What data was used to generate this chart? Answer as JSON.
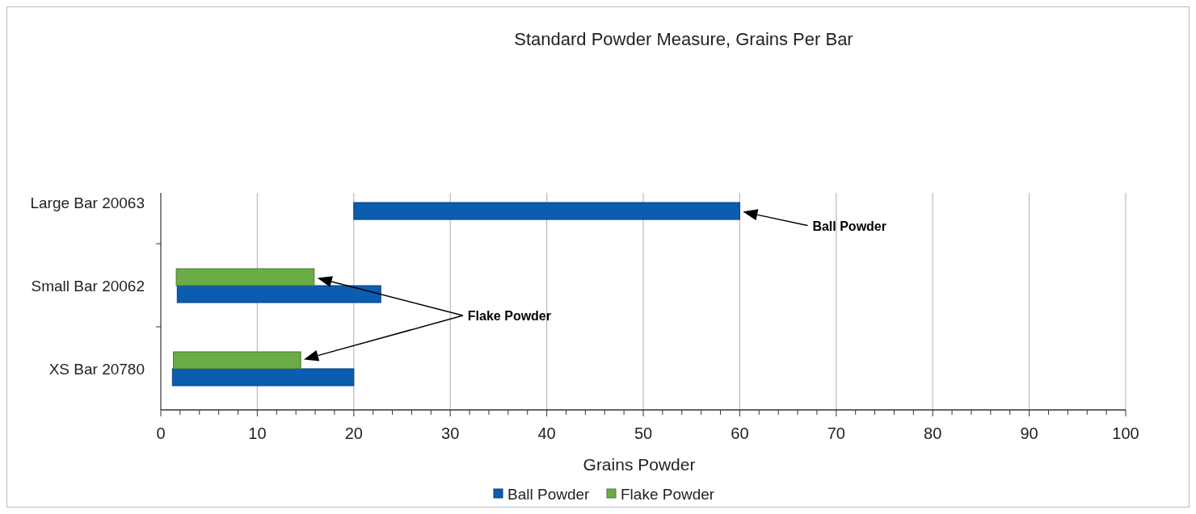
{
  "chart_data": {
    "type": "bar",
    "orientation": "horizontal",
    "title": "Standard Powder Measure, Grains Per Bar",
    "xlabel": "Grains Powder",
    "categories": [
      "Large Bar 20063",
      "Small Bar 20062",
      "XS Bar 20780"
    ],
    "series": [
      {
        "name": "Ball Powder",
        "color": "#0a5db0",
        "values": [
          40,
          21.1,
          18.8
        ],
        "base": [
          20,
          1.7,
          1.2
        ]
      },
      {
        "name": "Flake Powder",
        "color": "#6aab46",
        "values": [
          null,
          14.3,
          13.2
        ],
        "base": [
          null,
          1.6,
          1.3
        ]
      }
    ],
    "xlim": [
      0,
      100
    ],
    "xticks": [
      0,
      {
        "value": 2,
        "label": null
      },
      {
        "value": 4,
        "label": null
      },
      {
        "value": 6,
        "label": null
      },
      {
        "value": 8,
        "label": null
      },
      10,
      {
        "value": 12,
        "label": null
      },
      {
        "value": 14,
        "label": null
      },
      {
        "value": 16,
        "label": null
      },
      {
        "value": 18,
        "label": null
      },
      20,
      {
        "value": 22,
        "label": null
      },
      {
        "value": 24,
        "label": null
      },
      {
        "value": 26,
        "label": null
      },
      {
        "value": 28,
        "label": null
      },
      30,
      {
        "value": 32,
        "label": null
      },
      {
        "value": 34,
        "label": null
      },
      {
        "value": 36,
        "label": null
      },
      {
        "value": 38,
        "label": null
      },
      40,
      {
        "value": 42,
        "label": null
      },
      {
        "value": 44,
        "label": null
      },
      {
        "value": 46,
        "label": null
      },
      {
        "value": 48,
        "label": null
      },
      50,
      {
        "value": 52,
        "label": null
      },
      {
        "value": 54,
        "label": null
      },
      {
        "value": 56,
        "label": null
      },
      {
        "value": 58,
        "label": null
      },
      60,
      {
        "value": 62,
        "label": null
      },
      {
        "value": 64,
        "label": null
      },
      {
        "value": 66,
        "label": null
      },
      {
        "value": 68,
        "label": null
      },
      70,
      {
        "value": 72,
        "label": null
      },
      {
        "value": 74,
        "label": null
      },
      {
        "value": 76,
        "label": null
      },
      {
        "value": 78,
        "label": null
      },
      80,
      {
        "value": 82,
        "label": null
      },
      {
        "value": 84,
        "label": null
      },
      {
        "value": 86,
        "label": null
      },
      {
        "value": 88,
        "label": null
      },
      90,
      {
        "value": 92,
        "label": null
      },
      {
        "value": 94,
        "label": null
      },
      {
        "value": 96,
        "label": null
      },
      {
        "value": 98,
        "label": null
      },
      100
    ],
    "grid": "x",
    "legend": "bottom",
    "annotations": [
      "Ball Powder",
      "Flake Powder"
    ]
  }
}
